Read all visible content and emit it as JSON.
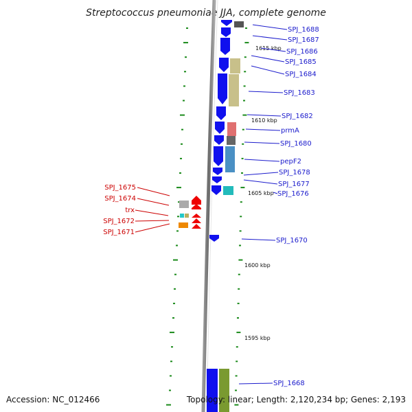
{
  "title": "Streptococcus pneumoniae JJA, complete genome",
  "footer": {
    "accession": "Accession: NC_012466",
    "topology": "Topology: linear; Length: 2,120,234 bp; Genes: 2,193"
  },
  "kbp_labels": [
    "1615 kbp",
    "1610 kbp",
    "1605 kbp",
    "1600 kbp",
    "1595 kbp"
  ],
  "forward_gene_labels": [
    "SPJ_1688",
    "SPJ_1687",
    "SPJ_1686",
    "SPJ_1685",
    "SPJ_1684",
    "SPJ_1683",
    "SPJ_1682",
    "prmA",
    "SPJ_1680",
    "pepF2",
    "SPJ_1678",
    "SPJ_1677",
    "SPJ_1676",
    "SPJ_1670",
    "SPJ_1668"
  ],
  "reverse_gene_labels": [
    "SPJ_1675",
    "SPJ_1674",
    "trx",
    "SPJ_1672",
    "SPJ_1671"
  ],
  "colors": {
    "forward_gene": "#1010ee",
    "reverse_gene": "#ee0000",
    "forward_label": "#1a1acc",
    "reverse_label": "#cc0000",
    "backbone": "#888888",
    "tick": "#1a8a1a"
  }
}
